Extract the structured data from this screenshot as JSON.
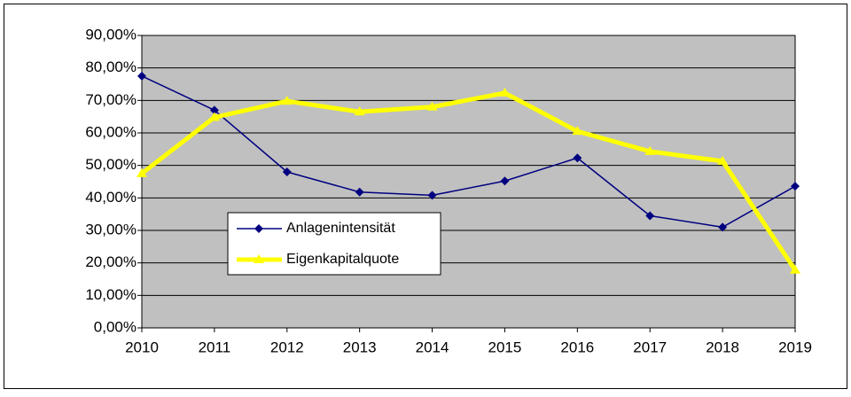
{
  "chart_data": {
    "type": "line",
    "categories": [
      "2010",
      "2011",
      "2012",
      "2013",
      "2014",
      "2015",
      "2016",
      "2017",
      "2018",
      "2019"
    ],
    "series": [
      {
        "name": "Anlagenintensität",
        "color": "#000080",
        "marker": "diamond",
        "values": [
          77.5,
          67,
          48,
          41.8,
          40.8,
          45.2,
          52.3,
          34.5,
          31,
          43.6
        ]
      },
      {
        "name": "Eigenkapitalquote",
        "color": "#ffff00",
        "marker": "triangle",
        "values": [
          47.5,
          64.8,
          69.8,
          66.5,
          68,
          72.3,
          60.5,
          54.3,
          51.3,
          17.8
        ]
      }
    ],
    "ylim": [
      0,
      90
    ],
    "yticks": [
      {
        "value": 0,
        "label": "0,00%"
      },
      {
        "value": 10,
        "label": "10,00%"
      },
      {
        "value": 20,
        "label": "20,00%"
      },
      {
        "value": 30,
        "label": "30,00%"
      },
      {
        "value": 40,
        "label": "40,00%"
      },
      {
        "value": 50,
        "label": "50,00%"
      },
      {
        "value": 60,
        "label": "60,00%"
      },
      {
        "value": 70,
        "label": "70,00%"
      },
      {
        "value": 80,
        "label": "80,00%"
      },
      {
        "value": 90,
        "label": "90,00%"
      }
    ],
    "grid": true,
    "plot_background": "#c0c0c0"
  }
}
